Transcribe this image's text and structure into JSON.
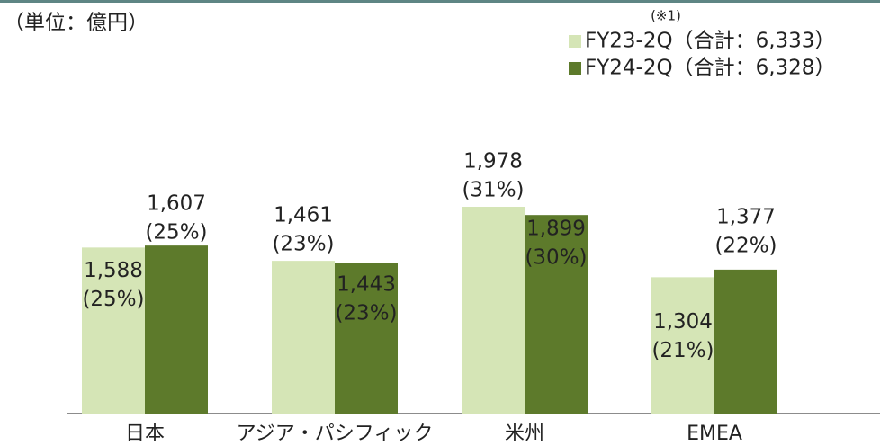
{
  "chart_data": {
    "type": "bar",
    "unit_label": "（単位：億円）",
    "note": "(※1)",
    "categories": [
      "日本",
      "アジア・パシフィック",
      "米州",
      "EMEA"
    ],
    "series": [
      {
        "name": "FY23-2Q（合計：6,333）",
        "color": "#d5e5b6",
        "values": [
          1588,
          1461,
          1978,
          1304
        ],
        "value_labels": [
          "1,588",
          "1,461",
          "1,978",
          "1,304"
        ],
        "share_labels": [
          "(25%)",
          "(23%)",
          "(31%)",
          "(21%)"
        ]
      },
      {
        "name": "FY24-2Q（合計：6,328）",
        "color": "#5d7a2b",
        "values": [
          1607,
          1443,
          1899,
          1377
        ],
        "value_labels": [
          "1,607",
          "1,443",
          "1,899",
          "1,377"
        ],
        "share_labels": [
          "(25%)",
          "(23%)",
          "(30%)",
          "(22%)"
        ]
      }
    ]
  }
}
